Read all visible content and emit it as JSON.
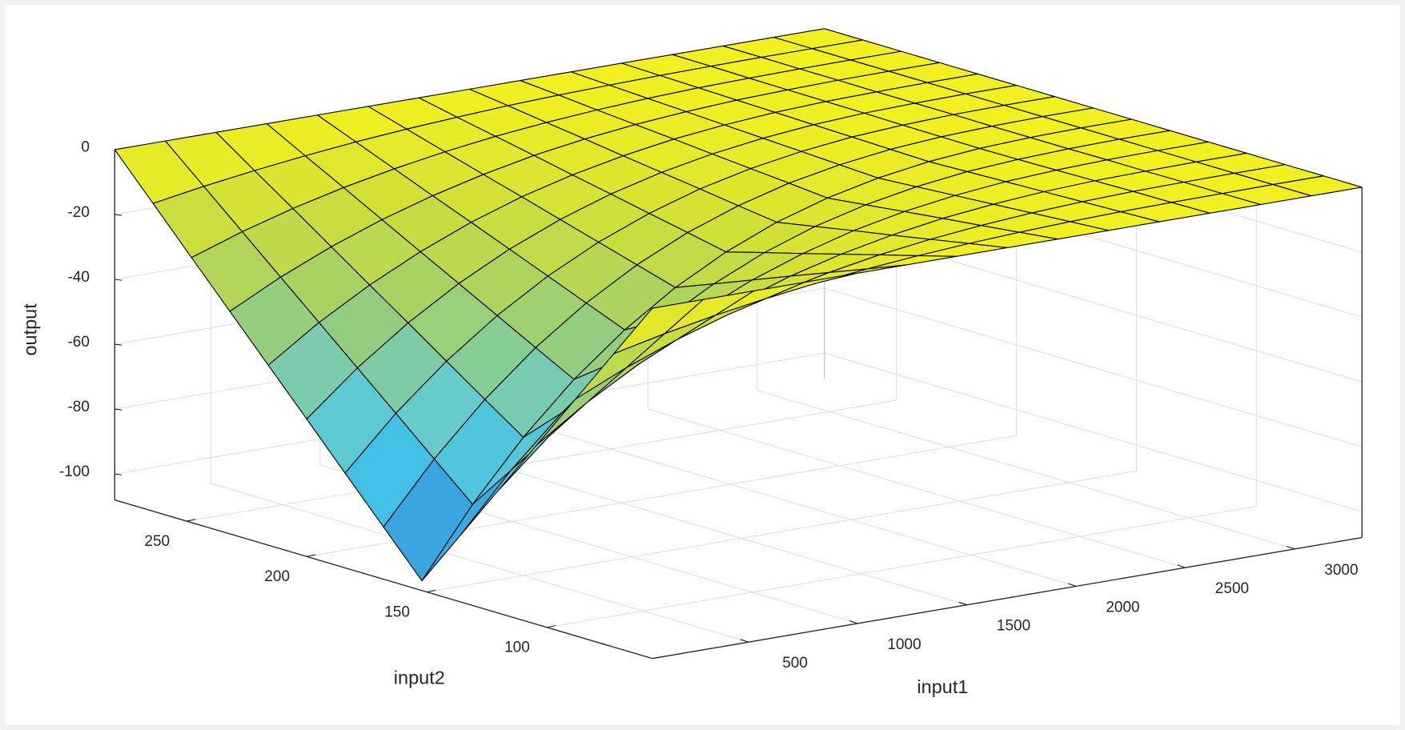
{
  "chart_data": {
    "type": "surface",
    "xlabel": "input1",
    "ylabel": "input2",
    "zlabel": "output",
    "x": [
      60,
      292,
      524,
      756,
      988,
      1220,
      1452,
      1684,
      1916,
      2148,
      2380,
      2612,
      2844,
      3076,
      3308
    ],
    "y": [
      56,
      72,
      88,
      104,
      120,
      136,
      152,
      168,
      184,
      200,
      216,
      232,
      248,
      264,
      280
    ],
    "z": [
      [
        0,
        0,
        0,
        0,
        0,
        0,
        0,
        0,
        0,
        0,
        0,
        0,
        0,
        0,
        0
      ],
      [
        -17.5,
        -14.0,
        -11.0,
        -8.5,
        -6.4,
        -4.7,
        -3.3,
        -2.2,
        -1.4,
        -0.8,
        -0.4,
        -0.2,
        -0.1,
        0,
        0
      ],
      [
        -35,
        -28.0,
        -22.0,
        -17.0,
        -12.8,
        -9.3,
        -6.5,
        -4.4,
        -2.8,
        -1.6,
        -0.8,
        -0.3,
        -0.1,
        0,
        0
      ],
      [
        -52.5,
        -42.0,
        -33.1,
        -25.5,
        -19.1,
        -13.9,
        -9.8,
        -6.6,
        -4.1,
        -2.4,
        -1.2,
        -0.5,
        -0.2,
        0,
        0
      ],
      [
        -70,
        -56.0,
        -44.1,
        -33.9,
        -25.5,
        -18.6,
        -13.1,
        -8.7,
        -5.5,
        -3.2,
        -1.6,
        -0.7,
        -0.2,
        0,
        0
      ],
      [
        -87.5,
        -70.1,
        -55.1,
        -42.4,
        -31.9,
        -23.3,
        -16.3,
        -10.9,
        -6.9,
        -4.0,
        -2.0,
        -0.9,
        -0.3,
        0,
        0
      ],
      [
        -105,
        -84.1,
        -66.1,
        -50.9,
        -38.3,
        -27.9,
        -19.6,
        -13.1,
        -8.3,
        -4.8,
        -2.4,
        -1.0,
        -0.3,
        0,
        0
      ],
      [
        -91.9,
        -73.6,
        -57.9,
        -44.6,
        -33.5,
        -24.4,
        -17.1,
        -11.5,
        -7.2,
        -4.2,
        -2.1,
        -0.9,
        -0.3,
        0,
        0
      ],
      [
        -78.8,
        -63.0,
        -49.6,
        -38.2,
        -28.7,
        -20.9,
        -14.7,
        -9.8,
        -6.2,
        -3.6,
        -1.8,
        -0.8,
        -0.2,
        0,
        0
      ],
      [
        -65.6,
        -52.5,
        -41.3,
        -31.8,
        -23.9,
        -17.4,
        -12.2,
        -8.2,
        -5.2,
        -3.0,
        -1.5,
        -0.6,
        -0.2,
        0,
        0
      ],
      [
        -52.5,
        -42.0,
        -33.1,
        -25.5,
        -19.1,
        -13.9,
        -9.8,
        -6.6,
        -4.1,
        -2.4,
        -1.2,
        -0.5,
        -0.2,
        0,
        0
      ],
      [
        -39.4,
        -31.5,
        -24.8,
        -19.1,
        -14.4,
        -10.5,
        -7.3,
        -4.9,
        -3.1,
        -1.8,
        -0.9,
        -0.4,
        -0.1,
        0,
        0
      ],
      [
        -26.3,
        -21.0,
        -16.5,
        -12.7,
        -9.6,
        -7.0,
        -4.9,
        -3.3,
        -2.1,
        -1.2,
        -0.6,
        -0.3,
        -0.1,
        0,
        0
      ],
      [
        -13.1,
        -10.5,
        -8.3,
        -6.4,
        -4.8,
        -3.5,
        -2.5,
        -1.6,
        -1.0,
        -0.6,
        -0.3,
        -0.1,
        0,
        0,
        0
      ],
      [
        0,
        0,
        0,
        0,
        0,
        0,
        0,
        0,
        0,
        0,
        0,
        0,
        0,
        0,
        0
      ]
    ],
    "xlim": [
      60,
      3308
    ],
    "ylim": [
      56,
      280
    ],
    "zlim": [
      -108,
      0
    ],
    "xticks": [
      500,
      1000,
      1500,
      2000,
      2500,
      3000
    ],
    "yticks": [
      100,
      150,
      200,
      250
    ],
    "zticks": [
      -100,
      -80,
      -60,
      -40,
      -20,
      0
    ],
    "grid": true,
    "colormap": [
      "#3a55a6",
      "#3aa2e0",
      "#44c4e6",
      "#6accc8",
      "#8ccc8a",
      "#b0d45a",
      "#d2e036",
      "#f2f020"
    ],
    "edge_color": "#000000"
  }
}
